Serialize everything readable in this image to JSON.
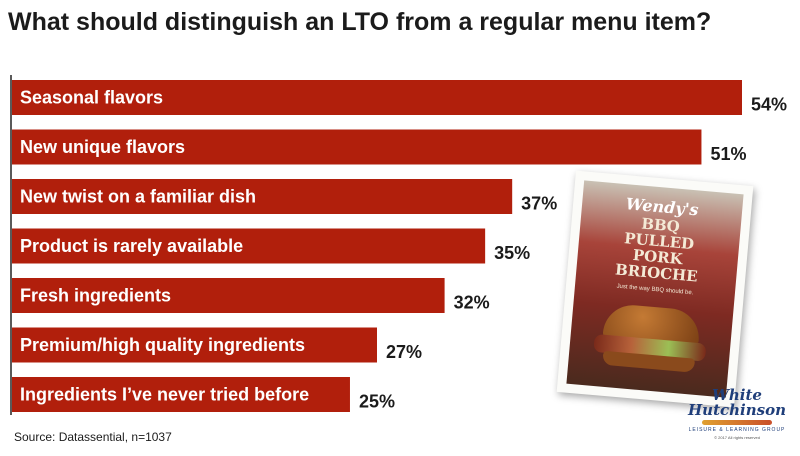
{
  "chart_data": {
    "type": "bar",
    "orientation": "horizontal",
    "title": "What should distinguish an LTO from a regular menu item?",
    "categories": [
      "Seasonal flavors",
      "New unique flavors",
      "New twist on a familiar dish",
      "Product is rarely available",
      "Fresh ingredients",
      "Premium/high quality ingredients",
      "Ingredients I’ve never tried before"
    ],
    "values": [
      54,
      51,
      37,
      35,
      32,
      27,
      25
    ],
    "value_labels": [
      "54%",
      "51%",
      "37%",
      "35%",
      "32%",
      "27%",
      "25%"
    ],
    "xlim": [
      0,
      54
    ],
    "bar_color": "#b11f0c",
    "grid": false,
    "source": "Source: Datassential, n=1037"
  },
  "ad_image": {
    "brand": "Wendy's",
    "headline": [
      "BBQ",
      "PULLED",
      "PORK",
      "BRIOCHE"
    ],
    "tagline": "Just the way BBQ should be."
  },
  "logo": {
    "line1": "White",
    "line2": "Hutchinson",
    "subtitle": "LEISURE & LEARNING GROUP",
    "copyright": "© 2017 All rights reserved"
  }
}
